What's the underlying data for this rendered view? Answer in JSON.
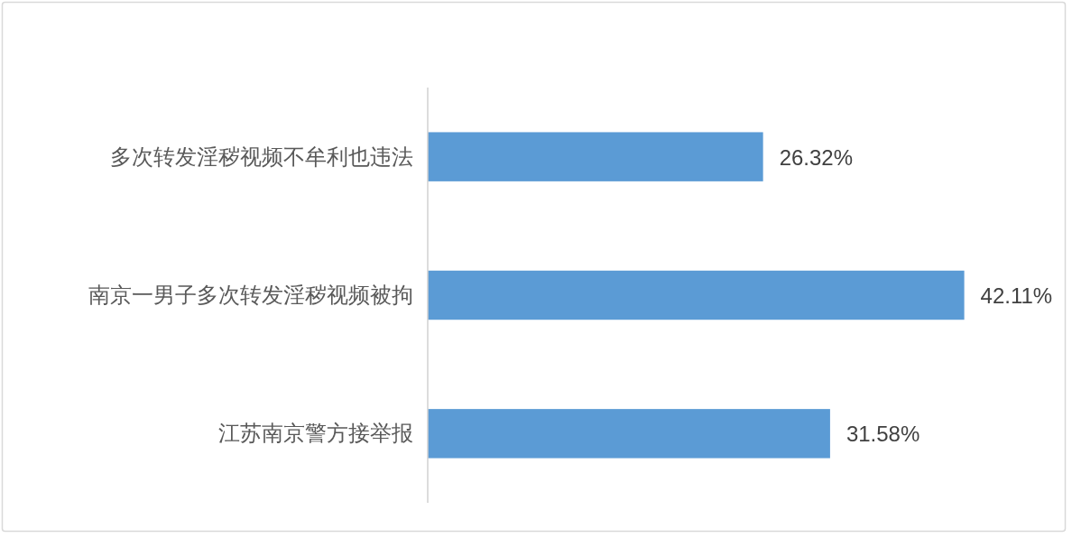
{
  "chart_data": {
    "type": "bar",
    "orientation": "horizontal",
    "categories": [
      "多次转发淫秽视频不牟利也违法",
      "南京一男子多次转发淫秽视频被拘",
      "江苏南京警方接举报"
    ],
    "values": [
      26.32,
      42.11,
      31.58
    ],
    "value_labels": [
      "26.32%",
      "42.11%",
      "31.58%"
    ],
    "color": "#5b9bd5"
  }
}
